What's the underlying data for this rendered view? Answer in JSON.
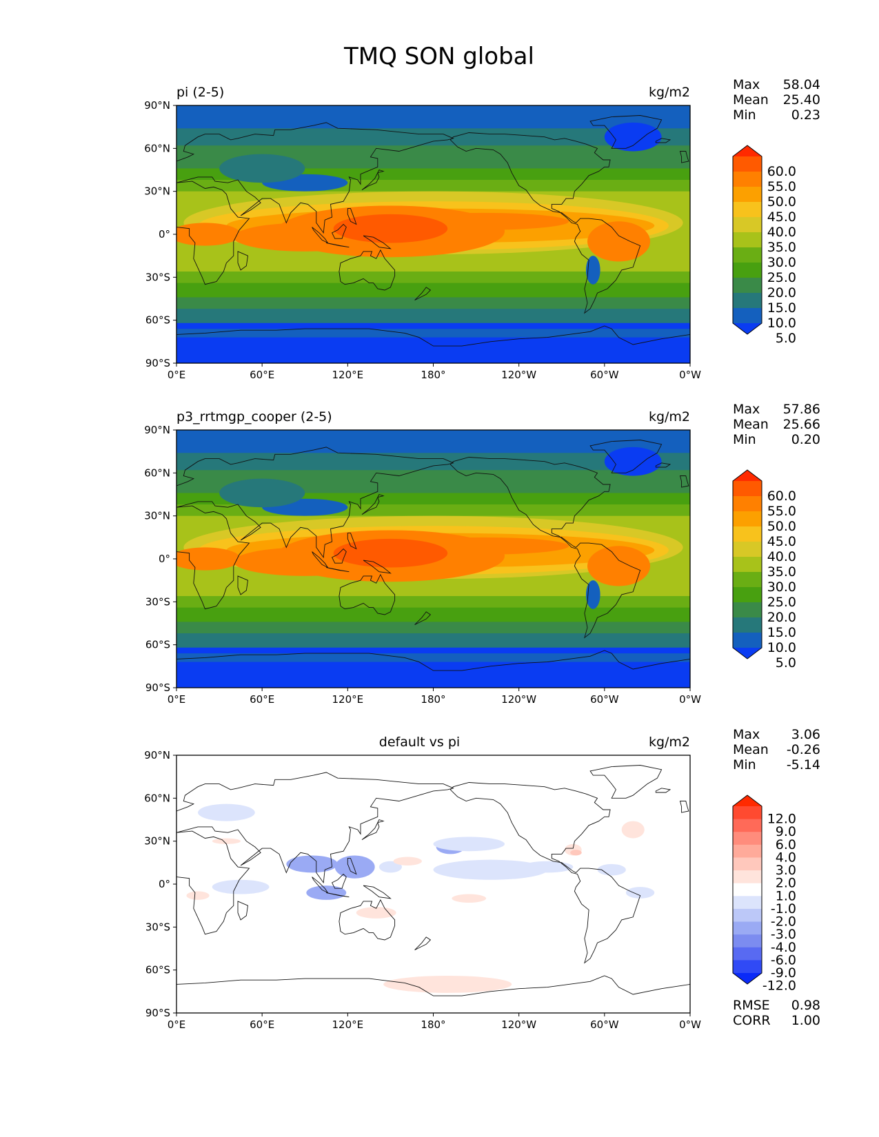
{
  "figure": {
    "title": "TMQ SON global"
  },
  "axes": {
    "x_ticks": [
      "0°E",
      "60°E",
      "120°E",
      "180°",
      "120°W",
      "60°W",
      "0°W"
    ],
    "y_ticks": [
      "90°N",
      "60°N",
      "30°N",
      "0°",
      "30°S",
      "60°S",
      "90°S"
    ]
  },
  "chart_data": [
    {
      "type": "heatmap",
      "title": "",
      "left_title": "pi (2-5)",
      "units": "kg/m2",
      "xlabel": "",
      "ylabel": "",
      "xlim": [
        0,
        360
      ],
      "ylim": [
        -90,
        90
      ],
      "grid": false,
      "stats": [
        {
          "label": "Max",
          "value": "58.04"
        },
        {
          "label": "Mean",
          "value": "25.40"
        },
        {
          "label": "Min",
          "value": "0.23"
        }
      ],
      "colorbar": {
        "labels": [
          "60.0",
          "55.0",
          "50.0",
          "45.0",
          "40.0",
          "35.0",
          "30.0",
          "25.0",
          "20.0",
          "15.0",
          "10.0",
          "5.0"
        ],
        "colors": [
          "#ff2a00",
          "#ff5a00",
          "#ff8000",
          "#fca000",
          "#f8c21c",
          "#d8c826",
          "#a8c21a",
          "#6aae14",
          "#48a010",
          "#3a8a48",
          "#26787a",
          "#1460be",
          "#0a3cf2"
        ],
        "extend": "both"
      },
      "field": "full"
    },
    {
      "type": "heatmap",
      "title": "",
      "left_title": "p3_rrtmgp_cooper (2-5)",
      "units": "kg/m2",
      "xlabel": "",
      "ylabel": "",
      "xlim": [
        0,
        360
      ],
      "ylim": [
        -90,
        90
      ],
      "grid": false,
      "stats": [
        {
          "label": "Max",
          "value": "57.86"
        },
        {
          "label": "Mean",
          "value": "25.66"
        },
        {
          "label": "Min",
          "value": "0.20"
        }
      ],
      "colorbar": {
        "labels": [
          "60.0",
          "55.0",
          "50.0",
          "45.0",
          "40.0",
          "35.0",
          "30.0",
          "25.0",
          "20.0",
          "15.0",
          "10.0",
          "5.0"
        ],
        "colors": [
          "#ff2a00",
          "#ff5a00",
          "#ff8000",
          "#fca000",
          "#f8c21c",
          "#d8c826",
          "#a8c21a",
          "#6aae14",
          "#48a010",
          "#3a8a48",
          "#26787a",
          "#1460be",
          "#0a3cf2"
        ],
        "extend": "both"
      },
      "field": "full"
    },
    {
      "type": "heatmap",
      "title": "default vs pi",
      "left_title": "",
      "units": "kg/m2",
      "xlabel": "",
      "ylabel": "",
      "xlim": [
        0,
        360
      ],
      "ylim": [
        -90,
        90
      ],
      "grid": false,
      "stats": [
        {
          "label": "Max",
          "value": "3.06"
        },
        {
          "label": "Mean",
          "value": "-0.26"
        },
        {
          "label": "Min",
          "value": "-5.14"
        }
      ],
      "extra_stats": [
        {
          "label": "RMSE",
          "value": "0.98"
        },
        {
          "label": "CORR",
          "value": "1.00"
        }
      ],
      "colorbar": {
        "labels": [
          "12.0",
          "9.0",
          "6.0",
          "4.0",
          "3.0",
          "2.0",
          "1.0",
          "-1.0",
          "-2.0",
          "-3.0",
          "-4.0",
          "-6.0",
          "-9.0",
          "-12.0"
        ],
        "colors": [
          "#ff2a00",
          "#ff4a30",
          "#ff6a58",
          "#ff8c7c",
          "#ffaa9a",
          "#ffc8bc",
          "#ffe4dc",
          "#ffffff",
          "#dce4fc",
          "#bcc8f8",
          "#9aaaf4",
          "#7c8cf0",
          "#586af2",
          "#304af6",
          "#0a2af8"
        ],
        "extend": "both"
      },
      "field": "diff"
    }
  ]
}
